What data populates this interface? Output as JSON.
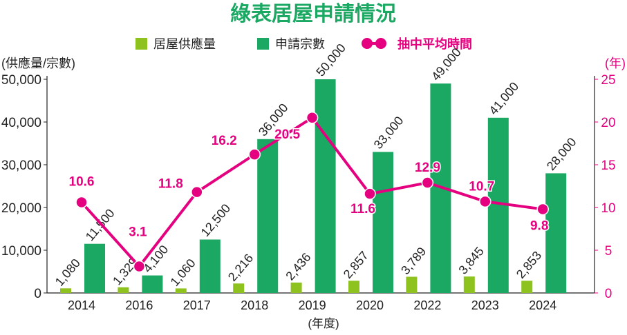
{
  "chart_data": {
    "type": "bar+line",
    "title": "綠表居屋申請情況",
    "xlabel": "(年度)",
    "ylabel_left": "(供應量/宗數)",
    "ylabel_right": "(年)",
    "categories": [
      "2014",
      "2016",
      "2017",
      "2018",
      "2019",
      "2020",
      "2022",
      "2023",
      "2024"
    ],
    "left_ylim": [
      0,
      50000
    ],
    "left_ticks": [
      "0",
      "10,000",
      "20,000",
      "30,000",
      "40,000",
      "50,000"
    ],
    "right_ylim": [
      0,
      25
    ],
    "right_ticks": [
      "0",
      "5",
      "10",
      "15",
      "20",
      "25"
    ],
    "legend_position": "top",
    "grid": false,
    "series": [
      {
        "name": "居屋供應量",
        "type": "bar",
        "axis": "left",
        "color": "#8dc21f",
        "values": [
          1080,
          1329,
          1060,
          2216,
          2436,
          2857,
          3789,
          3845,
          2853
        ],
        "labels": [
          "1,080",
          "1,329",
          "1,060",
          "2,216",
          "2,436",
          "2,857",
          "3,789",
          "3,845",
          "2,853"
        ]
      },
      {
        "name": "申請宗數",
        "type": "bar",
        "axis": "left",
        "color": "#1aa863",
        "values": [
          11500,
          4100,
          12500,
          36000,
          50000,
          33000,
          49000,
          41000,
          28000
        ],
        "labels": [
          "11,500",
          "4,100",
          "12,500",
          "36,000",
          "50,000",
          "33,000",
          "49,000",
          "41,000",
          "28,000"
        ]
      },
      {
        "name": "抽中平均時間",
        "type": "line",
        "axis": "right",
        "color": "#e4007f",
        "values": [
          10.6,
          3.1,
          11.8,
          16.2,
          20.5,
          11.6,
          12.9,
          10.7,
          9.8
        ],
        "labels": [
          "10.6",
          "3.1",
          "11.8",
          "16.2",
          "20.5",
          "11.6",
          "12.9",
          "10.7",
          "9.8"
        ]
      }
    ]
  }
}
